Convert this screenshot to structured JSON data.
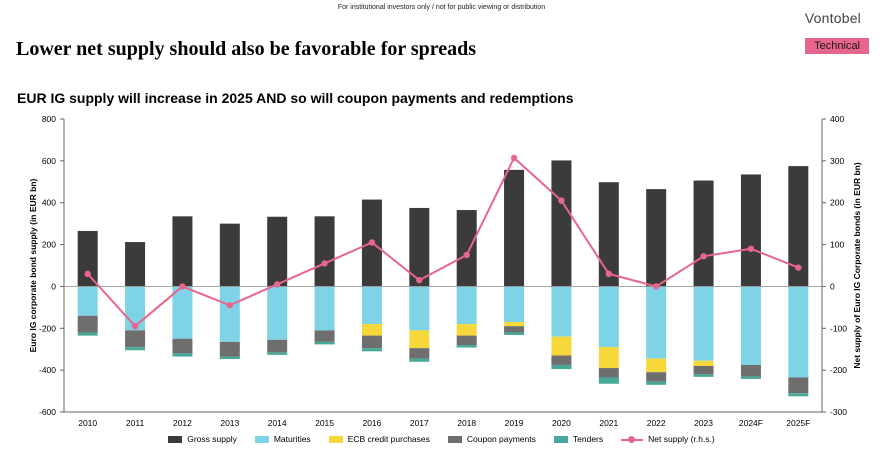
{
  "header": {
    "disclaimer": "For institutional investors only / not for public viewing or distribution",
    "brand": "Vontobel",
    "headline": "Lower net supply should also be favorable for spreads",
    "badge": "Technical"
  },
  "colors": {
    "gross": "#3a3b3a",
    "maturities": "#7fd3e6",
    "ecb": "#f7d83a",
    "coupon": "#6e6e6e",
    "tenders": "#48a89a",
    "net": "#e8668d"
  },
  "chart_data": {
    "type": "bar",
    "title": "EUR IG supply will increase in 2025 AND so will coupon payments and redemptions",
    "ylabel": "Euro IG corporate bond supply (in EUR bn)",
    "y2label": "Net supply of Euro IG Corporate bonds (in EUR bn)",
    "ylim": [
      -600,
      800
    ],
    "y2lim": [
      -300,
      400
    ],
    "yticks": [
      "-600",
      "-400",
      "-200",
      "0",
      "200",
      "400",
      "600",
      "800"
    ],
    "y2ticks": [
      "-300",
      "-200",
      "-100",
      "0",
      "100",
      "200",
      "300",
      "400"
    ],
    "categories": [
      "2010",
      "2011",
      "2012",
      "2013",
      "2014",
      "2015",
      "2016",
      "2017",
      "2018",
      "2019",
      "2020",
      "2021",
      "2022",
      "2023",
      "2024F",
      "2025F"
    ],
    "series": [
      {
        "name": "Gross supply",
        "values": [
          265,
          212,
          335,
          300,
          333,
          335,
          415,
          375,
          365,
          557,
          602,
          498,
          465,
          506,
          535,
          575
        ]
      },
      {
        "name": "Maturities",
        "values": [
          -140,
          -210,
          -250,
          -265,
          -255,
          -210,
          -180,
          -210,
          -180,
          -170,
          -240,
          -290,
          -345,
          -355,
          -375,
          -435
        ]
      },
      {
        "name": "ECB credit purchases",
        "values": [
          0,
          0,
          0,
          0,
          0,
          0,
          -55,
          -85,
          -55,
          -20,
          -90,
          -100,
          -65,
          -25,
          0,
          0
        ]
      },
      {
        "name": "Coupon payments",
        "values": [
          -80,
          -80,
          -70,
          -70,
          -60,
          -55,
          -60,
          -50,
          -45,
          -30,
          -45,
          -45,
          -45,
          -40,
          -55,
          -75
        ]
      },
      {
        "name": "Tenders",
        "values": [
          -15,
          -15,
          -15,
          -12,
          -12,
          -12,
          -15,
          -15,
          -12,
          -12,
          -20,
          -30,
          -15,
          -12,
          -12,
          -15
        ]
      },
      {
        "name": "Net supply (r.h.s.)",
        "axis": "right",
        "values": [
          30,
          -95,
          0,
          -45,
          5,
          55,
          105,
          15,
          75,
          307,
          205,
          30,
          0,
          72,
          90,
          45
        ]
      }
    ],
    "legend_position": "bottom",
    "grid": false
  }
}
